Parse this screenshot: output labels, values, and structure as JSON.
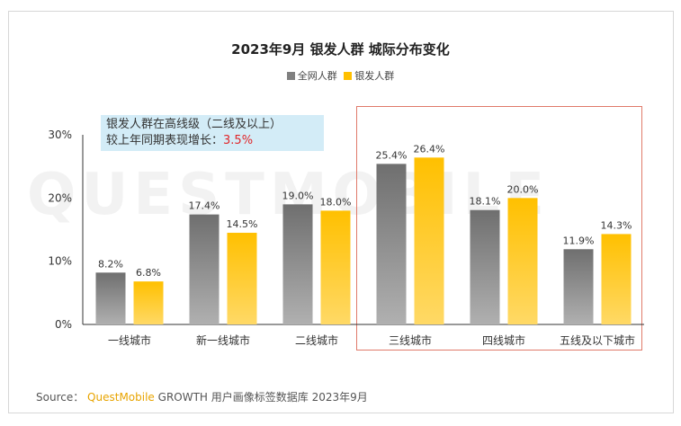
{
  "chart_data": {
    "type": "bar",
    "title": "2023年9月 银发人群 城际分布变化",
    "categories": [
      "一线城市",
      "新一线城市",
      "二线城市",
      "三线城市",
      "四线城市",
      "五线及以下城市"
    ],
    "series": [
      {
        "name": "全网人群",
        "color": "#808080",
        "values": [
          8.2,
          17.4,
          19.0,
          25.4,
          18.1,
          11.9
        ],
        "labels": [
          "8.2%",
          "17.4%",
          "19.0%",
          "25.4%",
          "18.1%",
          "11.9%"
        ]
      },
      {
        "name": "银发人群",
        "color": "#ffc000",
        "values": [
          6.8,
          14.5,
          18.0,
          26.4,
          20.0,
          14.3
        ],
        "labels": [
          "6.8%",
          "14.5%",
          "18.0%",
          "26.4%",
          "20.0%",
          "14.3%"
        ]
      }
    ],
    "yticks": [
      "0%",
      "10%",
      "20%",
      "30%"
    ],
    "ytick_values": [
      0,
      10,
      20,
      30
    ],
    "ylim": [
      0,
      30
    ],
    "xlabel": "",
    "ylabel": ""
  },
  "note": {
    "line1": "银发人群在高线级（二线及以上）",
    "line2_prefix": "较上年同期表现增长：",
    "line2_value": "3.5%"
  },
  "watermark": "QUESTMOBILE",
  "source": {
    "label": "Source：",
    "brand": "QuestMobile",
    "text": "GROWTH 用户画像标签数据库 2023年9月"
  }
}
